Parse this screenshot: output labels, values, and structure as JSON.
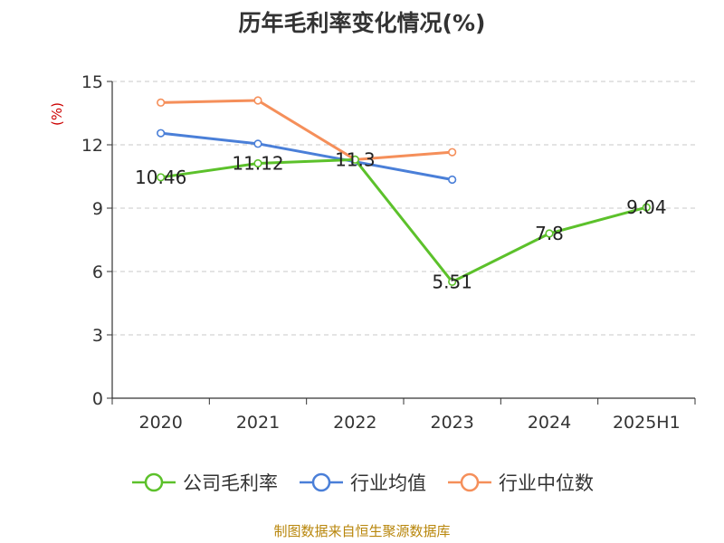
{
  "chart_data": {
    "type": "line",
    "title": "历年毛利率变化情况(%)",
    "ylabel": "(%)",
    "categories": [
      "2020",
      "2021",
      "2022",
      "2023",
      "2024",
      "2025H1"
    ],
    "ylim": [
      0,
      15
    ],
    "yticks": [
      0,
      3,
      6,
      9,
      12,
      15
    ],
    "grid": "horizontal-dashed",
    "legend_position": "bottom",
    "series": [
      {
        "name": "公司毛利率",
        "color": "#5cc12b",
        "values": [
          10.46,
          11.12,
          11.3,
          5.51,
          7.8,
          9.04
        ],
        "labels": [
          "10.46",
          "11.12",
          "11.3",
          "5.51",
          "7.8",
          "9.04"
        ]
      },
      {
        "name": "行业均值",
        "color": "#4a7fd8",
        "values": [
          12.55,
          12.05,
          11.2,
          10.35,
          null,
          null
        ]
      },
      {
        "name": "行业中位数",
        "color": "#f58f5a",
        "values": [
          14.0,
          14.1,
          11.3,
          11.65,
          null,
          null
        ]
      }
    ]
  },
  "source": "制图数据来自恒生聚源数据库"
}
